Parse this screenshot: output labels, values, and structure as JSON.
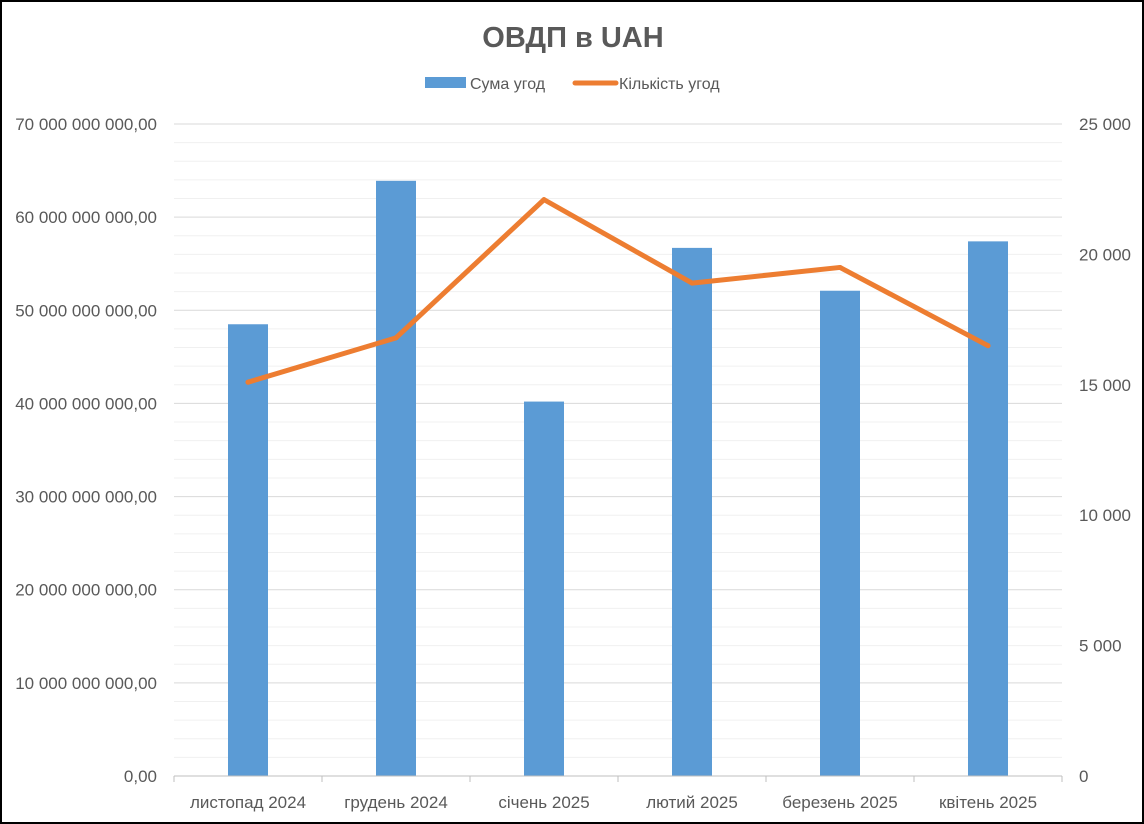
{
  "chart_data": {
    "type": "bar",
    "title": "ОВДП в UAH",
    "categories": [
      "листопад 2024",
      "грудень 2024",
      "січень 2025",
      "лютий 2025",
      "березень 2025",
      "квітень 2025"
    ],
    "series": [
      {
        "name": "Сума угод",
        "type": "bar",
        "axis": "left",
        "color": "#5B9BD5",
        "values": [
          48500000000,
          63900000000,
          40200000000,
          56700000000,
          52100000000,
          57400000000
        ]
      },
      {
        "name": "Кількість угод",
        "type": "line",
        "axis": "right",
        "color": "#ED7D31",
        "values": [
          15100,
          16800,
          22100,
          18900,
          19500,
          16500
        ]
      }
    ],
    "y_left": {
      "min": 0,
      "max": 70000000000,
      "step": 10000000000,
      "tick_labels": [
        "0,00",
        "10 000 000 000,00",
        "20 000 000 000,00",
        "30 000 000 000,00",
        "40 000 000 000,00",
        "50 000 000 000,00",
        "60 000 000 000,00",
        "70 000 000 000,00"
      ]
    },
    "y_right": {
      "min": 0,
      "max": 25000,
      "step": 5000,
      "tick_labels": [
        "0",
        "5 000",
        "10 000",
        "15 000",
        "20 000",
        "25 000"
      ]
    },
    "grid": true,
    "legend_position": "top"
  }
}
